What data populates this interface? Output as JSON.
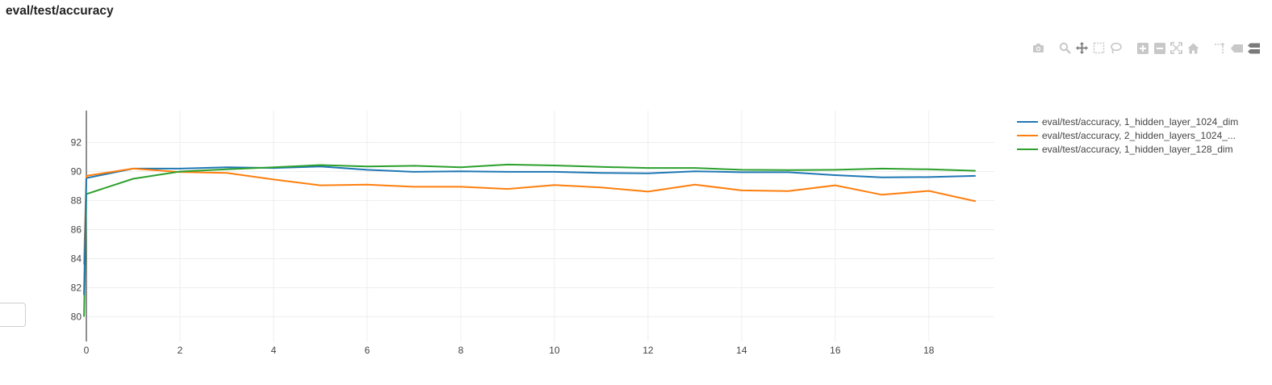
{
  "title": "eval/test/accuracy",
  "modebar": {
    "buttons": [
      {
        "name": "camera-icon",
        "color": "#c8c8c8"
      },
      {
        "name": "zoom-icon",
        "color": "#c8c8c8"
      },
      {
        "name": "pan-icon",
        "color": "#7a7a7a"
      },
      {
        "name": "box-select-icon",
        "color": "#c8c8c8"
      },
      {
        "name": "lasso-select-icon",
        "color": "#c8c8c8"
      },
      {
        "name": "zoom-in-icon",
        "color": "#c8c8c8"
      },
      {
        "name": "zoom-out-icon",
        "color": "#c8c8c8"
      },
      {
        "name": "autoscale-icon",
        "color": "#c8c8c8"
      },
      {
        "name": "reset-axes-icon",
        "color": "#c8c8c8"
      },
      {
        "name": "spike-lines-icon",
        "color": "#c8c8c8"
      },
      {
        "name": "hover-closest-icon",
        "color": "#c8c8c8"
      },
      {
        "name": "hover-compare-icon",
        "color": "#7a7a7a"
      }
    ]
  },
  "chart_data": {
    "type": "line",
    "title": "eval/test/accuracy",
    "xlabel": "",
    "ylabel": "",
    "xlim": [
      0,
      19.4
    ],
    "ylim": [
      78.3,
      94.2
    ],
    "xticks": [
      0,
      2,
      4,
      6,
      8,
      10,
      12,
      14,
      16,
      18
    ],
    "yticks": [
      80,
      82,
      84,
      86,
      88,
      90,
      92
    ],
    "grid": true,
    "legend_position": "top-right",
    "series": [
      {
        "name": "eval/test/accuracy, 1_hidden_layer_1024_dim",
        "legend_label": "eval/test/accuracy, 1_hidden_layer_1024_dim",
        "color": "#1f77b4",
        "x": [
          0,
          1,
          2,
          3,
          4,
          5,
          6,
          7,
          8,
          9,
          10,
          11,
          12,
          13,
          14,
          15,
          16,
          17,
          18,
          19
        ],
        "y": [
          89.55,
          90.2,
          90.2,
          90.3,
          90.25,
          90.35,
          90.12,
          89.98,
          90.02,
          89.98,
          89.98,
          89.9,
          89.88,
          90.02,
          89.95,
          89.95,
          89.75,
          89.6,
          89.62,
          89.7
        ]
      },
      {
        "name": "eval/test/accuracy, 2_hidden_layers_1024_...",
        "legend_label": "eval/test/accuracy, 2_hidden_layers_1024_...",
        "color": "#ff7f0e",
        "x": [
          0,
          1,
          2,
          3,
          4,
          5,
          6,
          7,
          8,
          9,
          10,
          11,
          12,
          13,
          14,
          15,
          16,
          17,
          18,
          19
        ],
        "y": [
          89.7,
          90.2,
          89.97,
          89.9,
          89.45,
          89.05,
          89.1,
          88.95,
          88.95,
          88.8,
          89.07,
          88.9,
          88.62,
          89.1,
          88.7,
          88.65,
          89.05,
          88.4,
          88.67,
          87.95
        ]
      },
      {
        "name": "eval/test/accuracy, 1_hidden_layer_128_dim",
        "legend_label": "eval/test/accuracy, 1_hidden_layer_128_dim",
        "color": "#2ca02c",
        "x": [
          0,
          1,
          2,
          3,
          4,
          5,
          6,
          7,
          8,
          9,
          10,
          11,
          12,
          13,
          14,
          15,
          16,
          17,
          18,
          19
        ],
        "y": [
          88.45,
          89.5,
          90.0,
          90.15,
          90.3,
          90.45,
          90.35,
          90.4,
          90.3,
          90.48,
          90.42,
          90.32,
          90.25,
          90.25,
          90.12,
          90.1,
          90.12,
          90.2,
          90.15,
          90.05
        ]
      }
    ]
  }
}
